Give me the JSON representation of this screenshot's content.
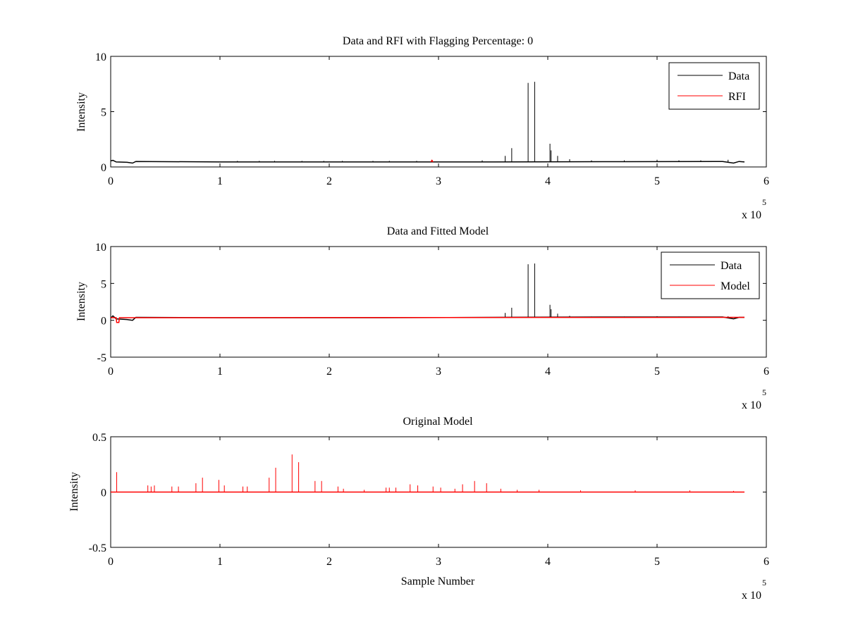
{
  "figure": {
    "background": "#ffffff"
  },
  "chart_data": [
    {
      "type": "line",
      "title": "Data and RFI with Flagging Percentage: 0",
      "xlabel": "",
      "ylabel": "Intensity",
      "xlim": [
        0,
        600000
      ],
      "ylim": [
        0,
        10
      ],
      "xticks": [
        0,
        100000,
        200000,
        300000,
        400000,
        500000,
        600000
      ],
      "xtick_labels": [
        "0",
        "1",
        "2",
        "3",
        "4",
        "5",
        "6"
      ],
      "x_multiplier": {
        "base": "x 10",
        "exponent": "5"
      },
      "yticks": [
        0,
        5,
        10
      ],
      "ytick_labels": [
        "0",
        "5",
        "10"
      ],
      "grid": false,
      "legend": {
        "location": "top-right",
        "entries": [
          "Data",
          "RFI"
        ]
      },
      "series": [
        {
          "name": "Data",
          "color": "#000000",
          "baseline": [
            [
              0,
              0.55
            ],
            [
              2000,
              0.6
            ],
            [
              5000,
              0.45
            ],
            [
              15000,
              0.42
            ],
            [
              20000,
              0.35
            ],
            [
              23000,
              0.5
            ],
            [
              100000,
              0.45
            ],
            [
              250000,
              0.45
            ],
            [
              350000,
              0.45
            ],
            [
              450000,
              0.48
            ],
            [
              560000,
              0.5
            ],
            [
              570000,
              0.35
            ],
            [
              575000,
              0.5
            ],
            [
              580000,
              0.45
            ]
          ],
          "spikes": [
            [
              116000,
              0.55
            ],
            [
              136000,
              0.55
            ],
            [
              150000,
              0.55
            ],
            [
              175000,
              0.55
            ],
            [
              195000,
              0.55
            ],
            [
              212000,
              0.55
            ],
            [
              240000,
              0.55
            ],
            [
              255000,
              0.55
            ],
            [
              280000,
              0.55
            ],
            [
              340000,
              0.6
            ],
            [
              361000,
              1.0
            ],
            [
              367000,
              1.7
            ],
            [
              382000,
              7.6
            ],
            [
              388000,
              7.7
            ],
            [
              402000,
              2.1
            ],
            [
              403000,
              1.5
            ],
            [
              409000,
              1.0
            ],
            [
              420000,
              0.7
            ],
            [
              440000,
              0.6
            ],
            [
              470000,
              0.6
            ],
            [
              500000,
              0.65
            ],
            [
              520000,
              0.6
            ],
            [
              540000,
              0.6
            ],
            [
              565000,
              0.65
            ]
          ]
        },
        {
          "name": "RFI",
          "color": "#ff0000",
          "points": [
            [
              293000,
              0.45
            ],
            [
              294000,
              0.6
            ],
            [
              295000,
              0.45
            ]
          ]
        }
      ]
    },
    {
      "type": "line",
      "title": "Data and Fitted Model",
      "xlabel": "",
      "ylabel": "Intensity",
      "xlim": [
        0,
        600000
      ],
      "ylim": [
        -5,
        10
      ],
      "xticks": [
        0,
        100000,
        200000,
        300000,
        400000,
        500000,
        600000
      ],
      "xtick_labels": [
        "0",
        "1",
        "2",
        "3",
        "4",
        "5",
        "6"
      ],
      "x_multiplier": {
        "base": "x 10",
        "exponent": "5"
      },
      "yticks": [
        -5,
        0,
        5,
        10
      ],
      "ytick_labels": [
        "-5",
        "0",
        "5",
        "10"
      ],
      "grid": false,
      "legend": {
        "location": "top-right",
        "entries": [
          "Data",
          "Model"
        ]
      },
      "series": [
        {
          "name": "Data",
          "color": "#000000",
          "baseline": [
            [
              0,
              0.3
            ],
            [
              2000,
              0.6
            ],
            [
              5000,
              0.2
            ],
            [
              15000,
              0.1
            ],
            [
              20000,
              0.0
            ],
            [
              23000,
              0.4
            ],
            [
              100000,
              0.35
            ],
            [
              250000,
              0.35
            ],
            [
              350000,
              0.4
            ],
            [
              450000,
              0.45
            ],
            [
              560000,
              0.45
            ],
            [
              570000,
              0.2
            ],
            [
              575000,
              0.4
            ],
            [
              580000,
              0.4
            ]
          ],
          "spikes": [
            [
              361000,
              1.0
            ],
            [
              367000,
              1.7
            ],
            [
              382000,
              7.6
            ],
            [
              388000,
              7.7
            ],
            [
              402000,
              2.1
            ],
            [
              403000,
              1.5
            ],
            [
              409000,
              0.9
            ],
            [
              420000,
              0.6
            ],
            [
              440000,
              0.5
            ],
            [
              470000,
              0.5
            ],
            [
              500000,
              0.55
            ],
            [
              520000,
              0.5
            ],
            [
              565000,
              0.55
            ]
          ]
        },
        {
          "name": "Model",
          "color": "#ff0000",
          "baseline": [
            [
              0,
              0.35
            ],
            [
              5000,
              0.35
            ],
            [
              5500,
              -0.3
            ],
            [
              7500,
              -0.3
            ],
            [
              8000,
              0.35
            ],
            [
              580000,
              0.4
            ]
          ]
        }
      ]
    },
    {
      "type": "line",
      "title": "Original Model",
      "xlabel": "Sample Number",
      "ylabel": "Intensity",
      "xlim": [
        0,
        600000
      ],
      "ylim": [
        -0.5,
        0.5
      ],
      "xticks": [
        0,
        100000,
        200000,
        300000,
        400000,
        500000,
        600000
      ],
      "xtick_labels": [
        "0",
        "1",
        "2",
        "3",
        "4",
        "5",
        "6"
      ],
      "x_multiplier": {
        "base": "x 10",
        "exponent": "5"
      },
      "yticks": [
        -0.5,
        0,
        0.5
      ],
      "ytick_labels": [
        "-0.5",
        "0",
        "0.5"
      ],
      "grid": false,
      "series": [
        {
          "name": "",
          "color": "#ff0000",
          "baseline": [
            [
              0,
              0.0
            ],
            [
              580000,
              0.0
            ]
          ],
          "spikes": [
            [
              5500,
              0.18
            ],
            [
              34000,
              0.06
            ],
            [
              37000,
              0.05
            ],
            [
              40000,
              0.06
            ],
            [
              56000,
              0.05
            ],
            [
              62000,
              0.05
            ],
            [
              78000,
              0.08
            ],
            [
              84000,
              0.13
            ],
            [
              99000,
              0.11
            ],
            [
              104000,
              0.06
            ],
            [
              121000,
              0.05
            ],
            [
              125000,
              0.05
            ],
            [
              145000,
              0.13
            ],
            [
              151000,
              0.22
            ],
            [
              166000,
              0.34
            ],
            [
              172000,
              0.27
            ],
            [
              187000,
              0.1
            ],
            [
              193000,
              0.1
            ],
            [
              208000,
              0.05
            ],
            [
              213000,
              0.03
            ],
            [
              232000,
              0.02
            ],
            [
              252000,
              0.04
            ],
            [
              255000,
              0.04
            ],
            [
              261000,
              0.04
            ],
            [
              274000,
              0.07
            ],
            [
              281000,
              0.06
            ],
            [
              295000,
              0.05
            ],
            [
              302000,
              0.04
            ],
            [
              315000,
              0.03
            ],
            [
              322000,
              0.07
            ],
            [
              333000,
              0.1
            ],
            [
              344000,
              0.08
            ],
            [
              357000,
              0.03
            ],
            [
              372000,
              0.02
            ],
            [
              392000,
              0.02
            ],
            [
              430000,
              0.015
            ],
            [
              480000,
              0.015
            ],
            [
              530000,
              0.015
            ],
            [
              570000,
              0.01
            ]
          ]
        }
      ]
    }
  ]
}
